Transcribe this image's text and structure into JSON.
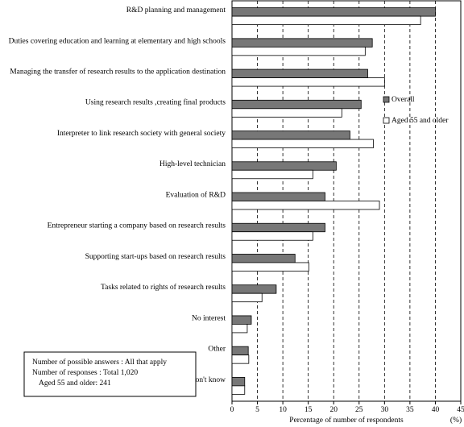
{
  "chart_data": {
    "type": "bar",
    "orientation": "horizontal",
    "categories": [
      "R&D planning and management",
      "Duties covering education and learning at elementary and high schools",
      "Managing the transfer of research results to the application destination",
      "Using research results ,creating final products",
      "Interpreter to link research society with general society",
      "High-level technician",
      "Evaluation of R&D",
      "Entrepreneur starting a company based on research results",
      "Supporting start-ups based on research results",
      "Tasks related to rights of research results",
      "No interest",
      "Other",
      "Don't know"
    ],
    "series": [
      {
        "name": "Overall",
        "color": "#777777",
        "values": [
          40.0,
          27.6,
          26.7,
          25.4,
          23.2,
          20.5,
          18.3,
          18.3,
          12.4,
          8.7,
          3.8,
          3.2,
          2.5
        ]
      },
      {
        "name": "Aged 55 and older",
        "color": "#ffffff",
        "values": [
          37.1,
          26.2,
          30.0,
          21.6,
          27.8,
          15.9,
          29.0,
          15.9,
          15.1,
          5.9,
          3.0,
          3.3,
          2.5
        ]
      }
    ],
    "xlim": [
      0,
      45
    ],
    "xticks": [
      0,
      5,
      10,
      15,
      20,
      25,
      30,
      35,
      40,
      45
    ],
    "xlabel": "Percentage of number of respondents",
    "unit": "(%)",
    "grid": true,
    "note": [
      "Number of possible answers : All that apply",
      "Number of responses : Total 1,020",
      "Aged 55 and older: 241"
    ]
  }
}
